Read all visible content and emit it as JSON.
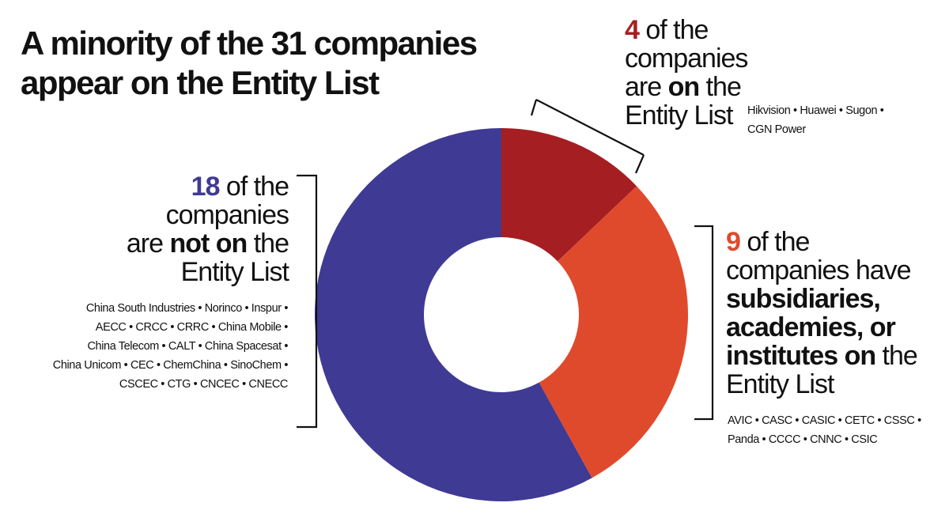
{
  "title_lines": [
    "A minority of the 31 companies",
    "appear on the Entity List"
  ],
  "colors": {
    "on_entity_list": "#a51e22",
    "subsidiaries_on_entity_list": "#e04a2c",
    "not_on_entity_list": "#3f3a93"
  },
  "chart_data": {
    "type": "pie",
    "style": "donut",
    "total": 31,
    "title": "A minority of the 31 companies appear on the Entity List",
    "slices": [
      {
        "key": "on",
        "value": 4,
        "color": "#a51e22"
      },
      {
        "key": "subsidiaries",
        "value": 9,
        "color": "#e04a2c"
      },
      {
        "key": "not_on",
        "value": 18,
        "color": "#3f3a93"
      }
    ]
  },
  "labels": {
    "on": {
      "number": "4",
      "line1_rest": " of the",
      "line2": "companies",
      "line3_pre": "are ",
      "line3_bold": "on",
      "line3_post": " the",
      "line4": "Entity List",
      "names": [
        "Hikvision • Huawei • Sugon •",
        "CGN Power"
      ]
    },
    "not_on": {
      "number": "18",
      "line1_rest": " of the",
      "line2": "companies",
      "line3_pre": "are ",
      "line3_bold": "not on",
      "line3_post": " the",
      "line4": "Entity List",
      "names": [
        "China South Industries • Norinco • Inspur •",
        "AECC • CRCC • CRRC • China Mobile •",
        "China Telecom • CALT • China Spacesat •",
        "China Unicom • CEC • ChemChina • SinoChem •",
        "CSCEC • CTG • CNCEC • CNECC"
      ]
    },
    "subsidiaries": {
      "number": "9",
      "line1_rest": " of the",
      "line2": "companies have",
      "line3_bold": "subsidiaries,",
      "line4_bold": "academies, or",
      "line5_bold": "institutes on",
      "line5_post": " the",
      "line6": "Entity List",
      "names": [
        "AVIC • CASC • CASIC • CETC • CSSC •",
        "Panda • CCCC • CNNC • CSIC"
      ]
    }
  }
}
